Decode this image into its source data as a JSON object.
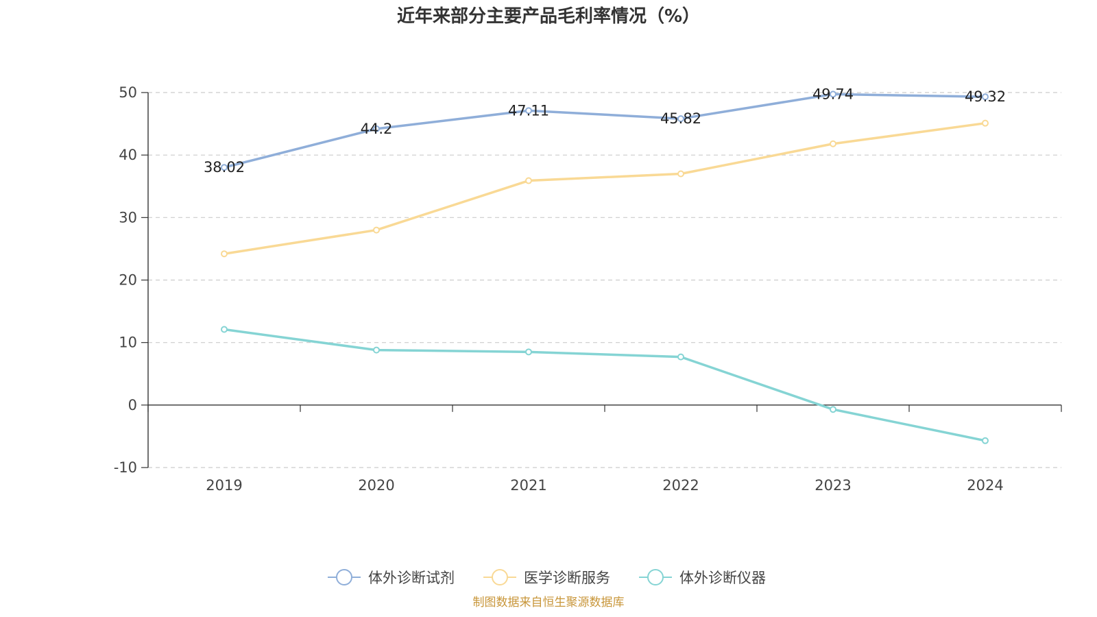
{
  "chart_data": {
    "type": "line",
    "title": "近年来部分主要产品毛利率情况（%）",
    "categories": [
      "2019",
      "2020",
      "2021",
      "2022",
      "2023",
      "2024"
    ],
    "ylim": [
      -10,
      50
    ],
    "yticks": [
      "50",
      "40",
      "30",
      "20",
      "10",
      "0",
      "-10"
    ],
    "grid": true,
    "legend_position": "bottom",
    "series": [
      {
        "name": "体外诊断试剂",
        "color": "#8faed9",
        "values": [
          38.02,
          44.2,
          47.11,
          45.82,
          49.74,
          49.32
        ],
        "labels": [
          "38.02",
          "44.2",
          "47.11",
          "45.82",
          "49.74",
          "49.32"
        ]
      },
      {
        "name": "医学诊断服务",
        "color": "#f9d995",
        "values": [
          24.2,
          28.0,
          35.9,
          37.0,
          41.8,
          45.1
        ]
      },
      {
        "name": "体外诊断仪器",
        "color": "#85d4d4",
        "values": [
          12.1,
          8.8,
          8.5,
          7.7,
          -0.7,
          -5.7
        ]
      }
    ]
  },
  "source_note": {
    "text": "制图数据来自恒生聚源数据库",
    "color": "#c8963a"
  }
}
